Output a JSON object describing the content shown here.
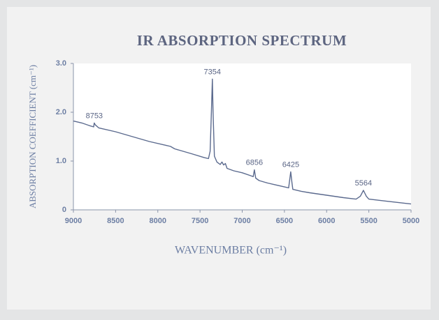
{
  "chart_data": {
    "type": "line",
    "title": "IR ABSORPTION SPECTRUM",
    "xlabel": "WAVENUMBER (cm⁻¹)",
    "ylabel": "ABSORPTION COEFFICIENT (cm⁻¹)",
    "xlim": [
      9000,
      5000
    ],
    "xticks": [
      9000,
      8500,
      8000,
      7500,
      7000,
      6500,
      6000,
      5500,
      5000
    ],
    "ylim": [
      0,
      3
    ],
    "yticks": [
      {
        "value": 3,
        "label": "3.0"
      },
      {
        "value": 2,
        "label": "2.0"
      },
      {
        "value": 1,
        "label": "1.0"
      },
      0
    ],
    "x": [
      9000,
      8900,
      8800,
      8760,
      8753,
      8740,
      8700,
      8500,
      8300,
      8100,
      7900,
      7850,
      7800,
      7600,
      7450,
      7400,
      7380,
      7365,
      7354,
      7345,
      7330,
      7300,
      7260,
      7240,
      7220,
      7200,
      7180,
      7100,
      7000,
      6900,
      6870,
      6856,
      6840,
      6800,
      6700,
      6600,
      6500,
      6450,
      6425,
      6410,
      6400,
      6300,
      6200,
      6000,
      5800,
      5650,
      5600,
      5564,
      5530,
      5500,
      5300,
      5100,
      5000
    ],
    "series": [
      {
        "color": "#5b6a8e",
        "values": [
          1.82,
          1.78,
          1.72,
          1.7,
          1.78,
          1.74,
          1.68,
          1.6,
          1.5,
          1.4,
          1.32,
          1.3,
          1.25,
          1.15,
          1.07,
          1.05,
          1.2,
          2.0,
          2.68,
          2.0,
          1.1,
          0.98,
          0.93,
          0.98,
          0.92,
          0.95,
          0.85,
          0.8,
          0.76,
          0.7,
          0.68,
          0.82,
          0.65,
          0.6,
          0.55,
          0.51,
          0.47,
          0.45,
          0.78,
          0.55,
          0.42,
          0.38,
          0.35,
          0.3,
          0.25,
          0.22,
          0.28,
          0.4,
          0.28,
          0.22,
          0.18,
          0.14,
          0.12
        ]
      }
    ],
    "annotations": [
      {
        "text": "8753",
        "x": 8753
      },
      {
        "text": "7354",
        "x": 7354
      },
      {
        "text": "6856",
        "x": 6856
      },
      {
        "text": "6425",
        "x": 6425
      },
      {
        "text": "5564",
        "x": 5564
      }
    ]
  }
}
